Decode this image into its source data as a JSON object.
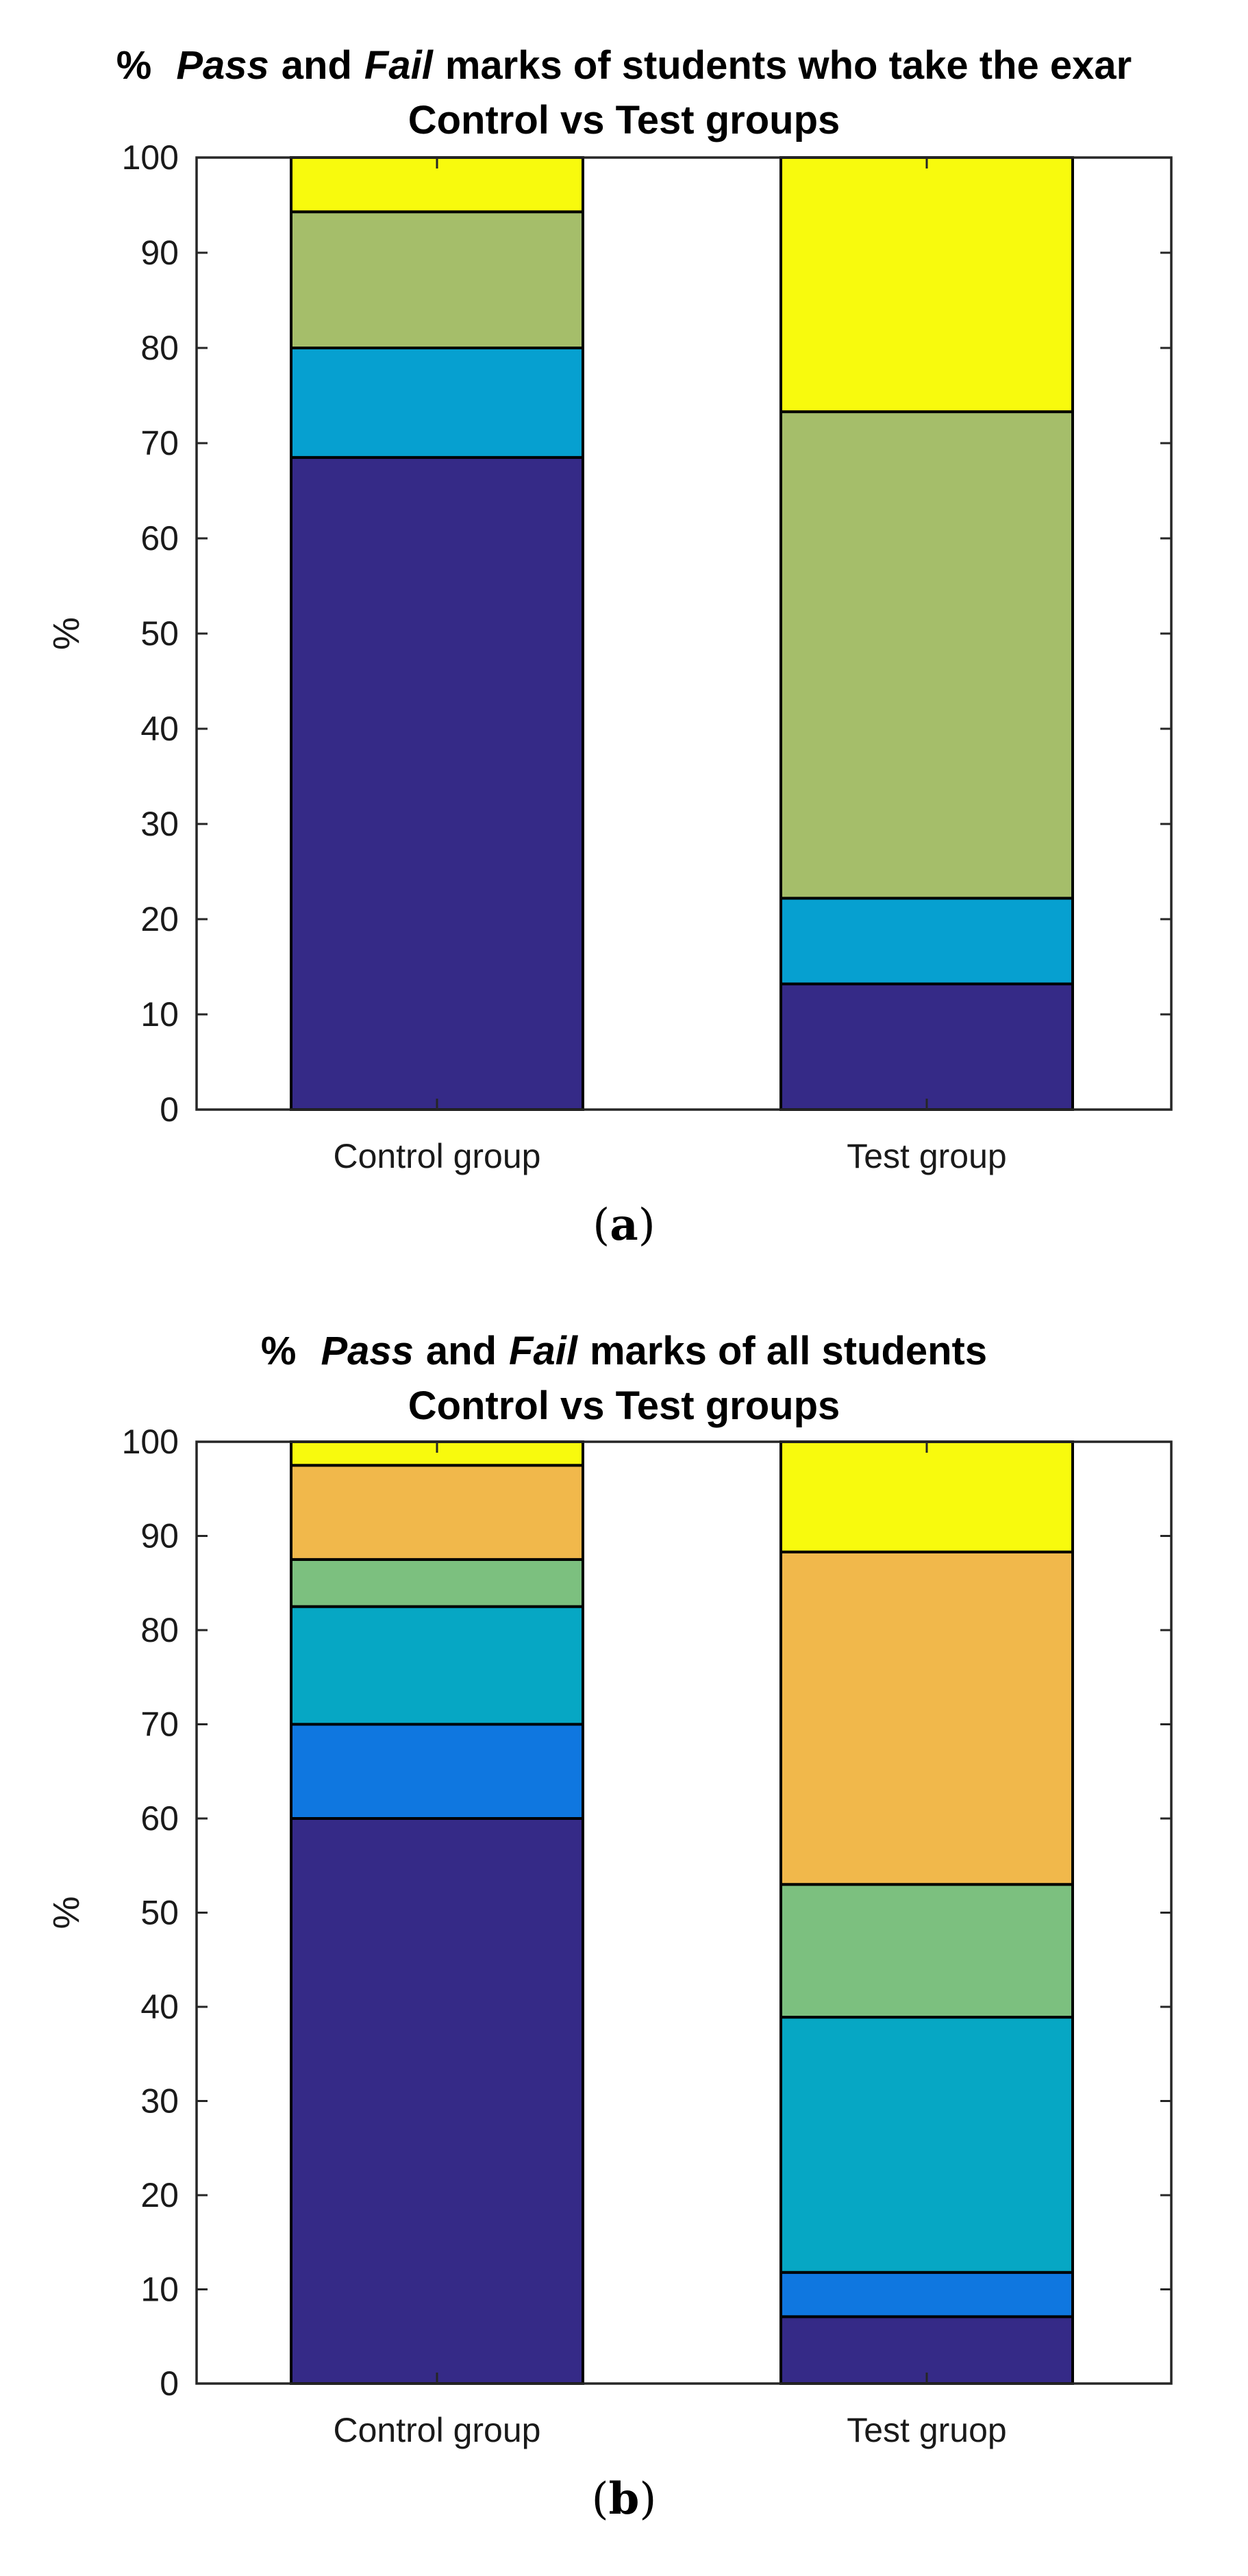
{
  "chart_data": [
    {
      "type": "bar",
      "stacked": true,
      "title": {
        "line1": [
          "%",
          "Pass",
          "and",
          "Fail",
          "marks of students who take the exar"
        ],
        "line2": "Control vs Test groups"
      },
      "xlabel": "",
      "ylabel": "%",
      "ylim": [
        0,
        100
      ],
      "yticks": [
        "0",
        "10",
        "20",
        "30",
        "40",
        "50",
        "60",
        "70",
        "80",
        "90",
        "100"
      ],
      "categories": [
        "Control group",
        "Test group"
      ],
      "series": [
        {
          "name": "segment-1",
          "color": "#352a87",
          "values": [
            68.5,
            13.2
          ]
        },
        {
          "name": "segment-2",
          "color": "#06a0d0",
          "values": [
            11.5,
            9.0
          ]
        },
        {
          "name": "segment-3",
          "color": "#a5be6a",
          "values": [
            14.3,
            51.1
          ]
        },
        {
          "name": "segment-4",
          "color": "#f8fa0d",
          "values": [
            5.7,
            26.7
          ]
        }
      ],
      "grid": false,
      "caption": {
        "open": "(",
        "letter": "a",
        "close": ")"
      }
    },
    {
      "type": "bar",
      "stacked": true,
      "title": {
        "line1": [
          "%",
          "Pass",
          "and",
          "Fail",
          "marks of all students"
        ],
        "line2": "Control vs Test groups"
      },
      "xlabel": "",
      "ylabel": "%",
      "ylim": [
        0,
        100
      ],
      "yticks": [
        "0",
        "10",
        "20",
        "30",
        "40",
        "50",
        "60",
        "70",
        "80",
        "90",
        "100"
      ],
      "categories": [
        "Control group",
        "Test gruop"
      ],
      "series": [
        {
          "name": "segment-1",
          "color": "#352a87",
          "values": [
            60.0,
            7.1
          ]
        },
        {
          "name": "segment-2",
          "color": "#0f77e0",
          "values": [
            10.0,
            4.7
          ]
        },
        {
          "name": "segment-3",
          "color": "#06a7c4",
          "values": [
            12.5,
            27.1
          ]
        },
        {
          "name": "segment-4",
          "color": "#7cc07f",
          "values": [
            5.0,
            14.1
          ]
        },
        {
          "name": "segment-5",
          "color": "#f1b84b",
          "values": [
            10.0,
            35.3
          ]
        },
        {
          "name": "segment-6",
          "color": "#f8fa0d",
          "values": [
            2.5,
            11.7
          ]
        }
      ],
      "grid": false,
      "caption": {
        "open": "(",
        "letter": "b",
        "close": ")"
      }
    }
  ]
}
